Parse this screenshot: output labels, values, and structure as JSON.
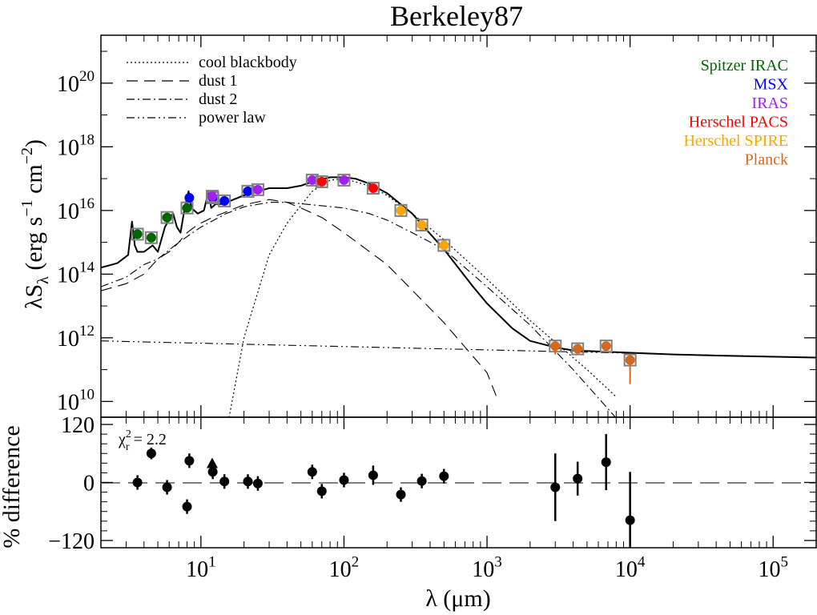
{
  "chart_data": [
    {
      "type": "scatter",
      "title": "Berkeley87",
      "xscale": "log",
      "yscale": "log",
      "xlim": [
        2,
        200000
      ],
      "ylim": [
        3200000000.0,
        3.2e+21
      ],
      "xticks": [
        10,
        100,
        1000,
        10000,
        100000
      ],
      "xtick_labels": [
        {
          "base": "10",
          "exp": "1"
        },
        {
          "base": "10",
          "exp": "2"
        },
        {
          "base": "10",
          "exp": "3"
        },
        {
          "base": "10",
          "exp": "4"
        },
        {
          "base": "10",
          "exp": "5"
        }
      ],
      "yticks": [
        10000000000.0,
        1000000000000.0,
        100000000000000.0,
        1e+16,
        1e+18,
        1e+20
      ],
      "ytick_labels": [
        {
          "base": "10",
          "exp": "10"
        },
        {
          "base": "10",
          "exp": "12"
        },
        {
          "base": "10",
          "exp": "14"
        },
        {
          "base": "10",
          "exp": "16"
        },
        {
          "base": "10",
          "exp": "18"
        },
        {
          "base": "10",
          "exp": "20"
        }
      ],
      "ylabel": {
        "a": "λS",
        "sub": "λ",
        "b": " (erg s",
        "sup1": "−1",
        "c": " cm",
        "sup2": "−2",
        "d": ")"
      },
      "legend_placement": "top-left",
      "legend": [
        {
          "label": "cool blackbody",
          "style": "dotted"
        },
        {
          "label": "dust 1",
          "style": "dashed"
        },
        {
          "label": "dust 2",
          "style": "dash-dot"
        },
        {
          "label": "power law",
          "style": "dash-dot-dot"
        }
      ],
      "instrument_legend_placement": "top-right",
      "instruments": [
        {
          "name": "Spitzer IRAC",
          "color": "#006400"
        },
        {
          "name": "MSX",
          "color": "#0000ff"
        },
        {
          "name": "IRAS",
          "color": "#a020f0"
        },
        {
          "name": "Herschel PACS",
          "color": "#ff0000"
        },
        {
          "name": "Herschel SPIRE",
          "color": "#ffa500"
        },
        {
          "name": "Planck",
          "color": "#d2691e"
        }
      ],
      "model_total": {
        "x": [
          2,
          2.6,
          3.1,
          3.3,
          3.45,
          3.6,
          4,
          4.6,
          5,
          5.6,
          6.2,
          6.4,
          6.8,
          7.2,
          7.7,
          8.2,
          8.6,
          9.5,
          10.5,
          11.3,
          11.8,
          12.7,
          14,
          16,
          20,
          25,
          30,
          40,
          50,
          60,
          80,
          100,
          120,
          150,
          200,
          300,
          500,
          800,
          1000,
          1500,
          2000,
          3000,
          4000,
          10000,
          20000,
          50000,
          200000
        ],
        "y": [
          160000000000000.0,
          220000000000000.0,
          400000000000000.0,
          4500000000000000.0,
          800000000000000.0,
          500000000000000.0,
          500000000000000.0,
          800000000000000.0,
          500000000000000.0,
          3000000000000000.0,
          7000000000000000.0,
          8000000000000000.0,
          3000000000000000.0,
          2000000000000000.0,
          1.2e+16,
          4e+16,
          1.2e+16,
          8000000000000000.0,
          1e+16,
          4e+16,
          1.2e+16,
          1.6e+16,
          1.6e+16,
          2e+16,
          3e+16,
          4e+16,
          5e+16,
          5e+16,
          6e+16,
          8e+16,
          1.1e+17,
          1.1e+17,
          1e+17,
          7e+16,
          3.5e+16,
          8000000000000000.0,
          600000000000000.0,
          40000000000000.0,
          12000000000000.0,
          2000000000000.0,
          800000000000.0,
          500000000000.0,
          400000000000.0,
          340000000000.0,
          300000000000.0,
          270000000000.0,
          240000000000.0
        ]
      },
      "model_cool_blackbody": {
        "x": [
          15,
          20,
          30,
          40,
          60,
          80,
          100,
          150,
          200,
          300,
          500,
          1000,
          2000,
          5000,
          8000
        ],
        "y": [
          1000000000.0,
          1000000000000.0,
          400000000000000.0,
          4000000000000000.0,
          4e+16,
          9e+16,
          1e+17,
          6e+16,
          3e+16,
          8000000000000000.0,
          1200000000000000.0,
          70000000000000.0,
          3500000000000.0,
          100000000000.0,
          14000000000.0
        ]
      },
      "model_dust1": {
        "x": [
          2,
          3,
          4,
          5,
          6,
          7,
          8,
          9,
          10,
          12,
          15,
          20,
          30,
          40,
          50,
          70,
          100,
          200,
          500,
          1000,
          1200
        ],
        "y": [
          30000000000000.0,
          50000000000000.0,
          100000000000000.0,
          300000000000000.0,
          500000000000000.0,
          1000000000000000.0,
          2000000000000000.0,
          3000000000000000.0,
          4000000000000000.0,
          6000000000000000.0,
          9000000000000000.0,
          1.5e+16,
          2.2e+16,
          1.8e+16,
          1.2e+16,
          6000000000000000.0,
          2000000000000000.0,
          200000000000000.0,
          3000000000000.0,
          80000000000.0,
          10000000000.0
        ]
      },
      "model_dust2": {
        "x": [
          2,
          3,
          4,
          5,
          7,
          10,
          15,
          20,
          30,
          40,
          60,
          100,
          150,
          200,
          300,
          500,
          1000,
          2000,
          4000,
          8000
        ],
        "y": [
          40000000000000.0,
          80000000000000.0,
          200000000000000.0,
          300000000000000.0,
          1000000000000000.0,
          3000000000000000.0,
          8000000000000000.0,
          1.3e+16,
          1.8e+16,
          1.8e+16,
          1.5e+16,
          1.2e+16,
          8000000000000000.0,
          5000000000000000.0,
          2000000000000000.0,
          600000000000000.0,
          40000000000000.0,
          2500000000000.0,
          100000000000.0,
          3000000000.0
        ]
      },
      "model_power_law": {
        "x": [
          2,
          200000
        ],
        "y": [
          800000000000.0,
          240000000000.0
        ]
      },
      "points": [
        {
          "instrument": "Spitzer IRAC",
          "x": 3.6,
          "y": 1800000000000000.0,
          "box": true
        },
        {
          "instrument": "Spitzer IRAC",
          "x": 4.5,
          "y": 1400000000000000.0,
          "box": true
        },
        {
          "instrument": "Spitzer IRAC",
          "x": 5.8,
          "y": 6000000000000000.0,
          "box": true
        },
        {
          "instrument": "Spitzer IRAC",
          "x": 8,
          "y": 1.2e+16,
          "box": true
        },
        {
          "instrument": "MSX",
          "x": 8.3,
          "y": 2.5e+16,
          "box": false
        },
        {
          "instrument": "MSX",
          "x": 12.1,
          "y": 2.5e+16,
          "box": true
        },
        {
          "instrument": "MSX",
          "x": 14.6,
          "y": 2e+16,
          "box": true
        },
        {
          "instrument": "MSX",
          "x": 21.3,
          "y": 4e+16,
          "box": true
        },
        {
          "instrument": "IRAS",
          "x": 12,
          "y": 2.8e+16,
          "box": true
        },
        {
          "instrument": "IRAS",
          "x": 25,
          "y": 4.5e+16,
          "box": true
        },
        {
          "instrument": "IRAS",
          "x": 60,
          "y": 9e+16,
          "box": true
        },
        {
          "instrument": "IRAS",
          "x": 100,
          "y": 9e+16,
          "box": true
        },
        {
          "instrument": "Herschel PACS",
          "x": 70,
          "y": 8e+16,
          "box": true
        },
        {
          "instrument": "Herschel PACS",
          "x": 160,
          "y": 5e+16,
          "box": true
        },
        {
          "instrument": "Herschel SPIRE",
          "x": 250,
          "y": 1e+16,
          "box": true
        },
        {
          "instrument": "Herschel SPIRE",
          "x": 350,
          "y": 3500000000000000.0,
          "box": true
        },
        {
          "instrument": "Herschel SPIRE",
          "x": 500,
          "y": 800000000000000.0,
          "box": true
        },
        {
          "instrument": "Planck",
          "x": 3000,
          "y": 550000000000.0,
          "box": true,
          "yerr_low": 300000000000.0,
          "yerr_high": 800000000000.0
        },
        {
          "instrument": "Planck",
          "x": 4300,
          "y": 450000000000.0,
          "box": true
        },
        {
          "instrument": "Planck",
          "x": 6800,
          "y": 550000000000.0,
          "box": true,
          "yerr_low": 400000000000.0,
          "yerr_high": 750000000000.0
        },
        {
          "instrument": "Planck",
          "x": 10000,
          "y": 200000000000.0,
          "box": true,
          "yerr_low": 35000000000.0,
          "yerr_high": 300000000000.0
        }
      ]
    },
    {
      "type": "scatter",
      "xscale": "log",
      "xlim": [
        2,
        200000
      ],
      "ylim": [
        -135,
        135
      ],
      "yticks": [
        -120,
        0,
        120
      ],
      "ytick_labels": [
        "−120",
        "0",
        "120"
      ],
      "xlabel": "λ (μm)",
      "ylabel": "% difference",
      "annotation": {
        "base": "χ",
        "sup": "2",
        "sub": "r",
        "text": " = 2.2"
      },
      "points": [
        {
          "x": 3.6,
          "y": 0,
          "err": 15
        },
        {
          "x": 4.5,
          "y": 60,
          "err": 12
        },
        {
          "x": 5.8,
          "y": -10,
          "err": 15
        },
        {
          "x": 8,
          "y": -50,
          "err": 15
        },
        {
          "x": 8.3,
          "y": 45,
          "err": 15
        },
        {
          "x": 12,
          "y": 38,
          "marker": "triangle"
        },
        {
          "x": 12.1,
          "y": 22,
          "err": 15
        },
        {
          "x": 14.6,
          "y": 2,
          "err": 15
        },
        {
          "x": 21.3,
          "y": 2,
          "err": 15
        },
        {
          "x": 25,
          "y": -2,
          "err": 15
        },
        {
          "x": 60,
          "y": 22,
          "err": 15
        },
        {
          "x": 70,
          "y": -18,
          "err": 15
        },
        {
          "x": 100,
          "y": 5,
          "err": 15
        },
        {
          "x": 160,
          "y": 15,
          "err": 20
        },
        {
          "x": 250,
          "y": -25,
          "err": 15
        },
        {
          "x": 350,
          "y": 3,
          "err": 15
        },
        {
          "x": 500,
          "y": 13,
          "err": 15
        },
        {
          "x": 3000,
          "y": -10,
          "err": 70
        },
        {
          "x": 4300,
          "y": 8,
          "err": 35
        },
        {
          "x": 6800,
          "y": 42,
          "err": 58
        },
        {
          "x": 10000,
          "y": -78,
          "err": 100
        }
      ]
    }
  ]
}
